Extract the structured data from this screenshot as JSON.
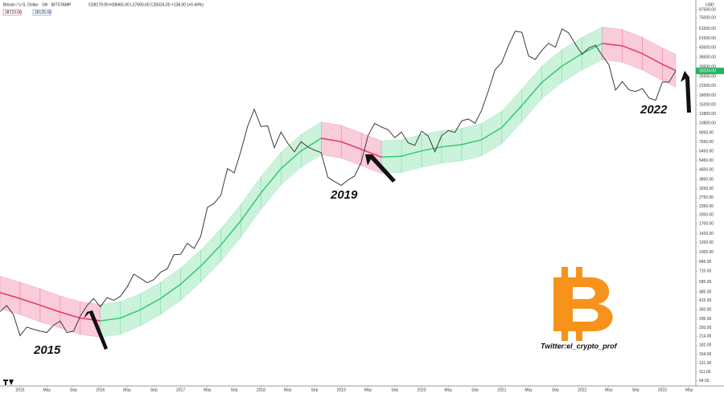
{
  "chart_data": {
    "type": "line",
    "title": "Bitcoin / U.S. Dollar · 1W · BITSTAMP",
    "ohlc_text": "O28179.00 H28465.00 L27600.00 C28324.00 +138.00 (+0.49%)",
    "indicator_labels": [
      "28723.00",
      "28125.00"
    ],
    "currency": "USD",
    "log_scale": true,
    "grid": false,
    "xlim": [
      "2014-10",
      "2023-06"
    ],
    "ylim": [
      86,
      104500
    ],
    "xticks": [
      {
        "value": "2015-01",
        "label": "2015"
      },
      {
        "value": "2015-05",
        "label": "May"
      },
      {
        "value": "2015-09",
        "label": "Sep"
      },
      {
        "value": "2016-01",
        "label": "2016"
      },
      {
        "value": "2016-05",
        "label": "May"
      },
      {
        "value": "2016-09",
        "label": "Sep"
      },
      {
        "value": "2017-01",
        "label": "2017"
      },
      {
        "value": "2017-05",
        "label": "May"
      },
      {
        "value": "2017-09",
        "label": "Sep"
      },
      {
        "value": "2018-01",
        "label": "2018"
      },
      {
        "value": "2018-05",
        "label": "May"
      },
      {
        "value": "2018-09",
        "label": "Sep"
      },
      {
        "value": "2019-01",
        "label": "2019"
      },
      {
        "value": "2019-05",
        "label": "May"
      },
      {
        "value": "2019-09",
        "label": "Sep"
      },
      {
        "value": "2020-01",
        "label": "2020"
      },
      {
        "value": "2020-05",
        "label": "May"
      },
      {
        "value": "2020-09",
        "label": "Sep"
      },
      {
        "value": "2021-01",
        "label": "2021"
      },
      {
        "value": "2021-05",
        "label": "May"
      },
      {
        "value": "2021-09",
        "label": "Sep"
      },
      {
        "value": "2022-01",
        "label": "2022"
      },
      {
        "value": "2022-05",
        "label": "May"
      },
      {
        "value": "2022-09",
        "label": "Sep"
      },
      {
        "value": "2023-01",
        "label": "2023"
      },
      {
        "value": "2023-05",
        "label": "May"
      }
    ],
    "yticks": [
      {
        "value": 87500,
        "label": "87500.00"
      },
      {
        "value": 75000,
        "label": "75000.00"
      },
      {
        "value": 61500,
        "label": "61500.00"
      },
      {
        "value": 51500,
        "label": "51500.00"
      },
      {
        "value": 43500,
        "label": "43500.00"
      },
      {
        "value": 36500,
        "label": "36500.00"
      },
      {
        "value": 30500,
        "label": "30500.00"
      },
      {
        "value": 25500,
        "label": "25500.00"
      },
      {
        "value": 21500,
        "label": "21500.00"
      },
      {
        "value": 18000,
        "label": "18000.00"
      },
      {
        "value": 15200,
        "label": "15200.00"
      },
      {
        "value": 12800,
        "label": "12800.00"
      },
      {
        "value": 10800,
        "label": "10800.00"
      },
      {
        "value": 9050,
        "label": "9050.00"
      },
      {
        "value": 7650,
        "label": "7650.00"
      },
      {
        "value": 6450,
        "label": "6450.00"
      },
      {
        "value": 5450,
        "label": "5450.00"
      },
      {
        "value": 4600,
        "label": "4600.00"
      },
      {
        "value": 3850,
        "label": "3850.00"
      },
      {
        "value": 3250,
        "label": "3250.00"
      },
      {
        "value": 2750,
        "label": "2750.00"
      },
      {
        "value": 2350,
        "label": "2350.00"
      },
      {
        "value": 2000,
        "label": "2000.00"
      },
      {
        "value": 1700,
        "label": "1700.00"
      },
      {
        "value": 1420,
        "label": "1420.00"
      },
      {
        "value": 1200,
        "label": "1200.00"
      },
      {
        "value": 1005,
        "label": "1005.00"
      },
      {
        "value": 845,
        "label": "845.00"
      },
      {
        "value": 710,
        "label": "710.00"
      },
      {
        "value": 585,
        "label": "585.00"
      },
      {
        "value": 485,
        "label": "485.00"
      },
      {
        "value": 415,
        "label": "415.00"
      },
      {
        "value": 350,
        "label": "350.00"
      },
      {
        "value": 295,
        "label": "295.00"
      },
      {
        "value": 250,
        "label": "250.00"
      },
      {
        "value": 214,
        "label": "214.00"
      },
      {
        "value": 182,
        "label": "182.00"
      },
      {
        "value": 154,
        "label": "154.00"
      },
      {
        "value": 131,
        "label": "131.00"
      },
      {
        "value": 111,
        "label": "111.00"
      },
      {
        "value": 94.5,
        "label": "94.50"
      }
    ],
    "last_price": {
      "value": 28324,
      "label": "28324.00"
    },
    "series": [
      {
        "name": "BTCUSD",
        "color": "#3a3a3a",
        "x": [
          "2014-10",
          "2014-11",
          "2014-12",
          "2015-01",
          "2015-02",
          "2015-03",
          "2015-04",
          "2015-05",
          "2015-06",
          "2015-07",
          "2015-08",
          "2015-09",
          "2015-10",
          "2015-11",
          "2015-12",
          "2016-01",
          "2016-02",
          "2016-03",
          "2016-04",
          "2016-05",
          "2016-06",
          "2016-07",
          "2016-08",
          "2016-09",
          "2016-10",
          "2016-11",
          "2016-12",
          "2017-01",
          "2017-02",
          "2017-03",
          "2017-04",
          "2017-05",
          "2017-06",
          "2017-07",
          "2017-08",
          "2017-09",
          "2017-10",
          "2017-11",
          "2017-12",
          "2018-01",
          "2018-02",
          "2018-03",
          "2018-04",
          "2018-05",
          "2018-06",
          "2018-07",
          "2018-08",
          "2018-09",
          "2018-10",
          "2018-11",
          "2018-12",
          "2019-01",
          "2019-02",
          "2019-03",
          "2019-04",
          "2019-05",
          "2019-06",
          "2019-07",
          "2019-08",
          "2019-09",
          "2019-10",
          "2019-11",
          "2019-12",
          "2020-01",
          "2020-02",
          "2020-03",
          "2020-04",
          "2020-05",
          "2020-06",
          "2020-07",
          "2020-08",
          "2020-09",
          "2020-10",
          "2020-11",
          "2020-12",
          "2021-01",
          "2021-02",
          "2021-03",
          "2021-04",
          "2021-05",
          "2021-06",
          "2021-07",
          "2021-08",
          "2021-09",
          "2021-10",
          "2021-11",
          "2021-12",
          "2022-01",
          "2022-02",
          "2022-03",
          "2022-04",
          "2022-05",
          "2022-06",
          "2022-07",
          "2022-08",
          "2022-09",
          "2022-10",
          "2022-11",
          "2022-12",
          "2023-01",
          "2023-02",
          "2023-03"
        ],
        "values": [
          338,
          378,
          320,
          217,
          254,
          244,
          236,
          230,
          263,
          284,
          230,
          236,
          311,
          377,
          430,
          369,
          437,
          416,
          448,
          531,
          673,
          624,
          575,
          609,
          698,
          742,
          963,
          970,
          1190,
          1080,
          1350,
          2300,
          2480,
          2870,
          4700,
          4340,
          6470,
          10200,
          14000,
          10200,
          10300,
          6900,
          9200,
          7500,
          6400,
          7700,
          7000,
          6600,
          6300,
          4000,
          3700,
          3450,
          3800,
          4100,
          5300,
          8600,
          10800,
          10100,
          9600,
          8300,
          9200,
          7550,
          7200,
          9350,
          8550,
          6400,
          8600,
          9450,
          9150,
          11300,
          11700,
          10800,
          13800,
          19700,
          29000,
          33100,
          45200,
          58800,
          57700,
          37300,
          35000,
          41500,
          47100,
          43800,
          61300,
          57000,
          46300,
          38500,
          43200,
          45500,
          37700,
          31800,
          19900,
          23300,
          20000,
          19400,
          20500,
          17200,
          16500,
          23100,
          23100,
          28300
        ]
      }
    ],
    "band": {
      "rising_color": "#2ecc71",
      "falling_color": "#e8336b",
      "x": [
        "2014-10",
        "2015-01",
        "2015-04",
        "2015-07",
        "2015-10",
        "2016-01",
        "2016-04",
        "2016-07",
        "2016-10",
        "2017-01",
        "2017-04",
        "2017-07",
        "2017-10",
        "2018-01",
        "2018-04",
        "2018-07",
        "2018-10",
        "2019-01",
        "2019-04",
        "2019-07",
        "2019-10",
        "2020-01",
        "2020-04",
        "2020-07",
        "2020-10",
        "2021-01",
        "2021-04",
        "2021-07",
        "2021-10",
        "2022-01",
        "2022-04",
        "2022-07",
        "2022-10",
        "2023-01",
        "2023-03"
      ],
      "center": [
        480,
        430,
        380,
        335,
        300,
        285,
        300,
        350,
        430,
        560,
        780,
        1150,
        1800,
        3000,
        4700,
        6500,
        8200,
        7700,
        6700,
        5800,
        5900,
        6500,
        7000,
        7300,
        8000,
        10000,
        15000,
        23000,
        31000,
        39000,
        47000,
        45000,
        39000,
        32000,
        28500
      ],
      "upper": [
        650,
        580,
        515,
        450,
        405,
        385,
        405,
        470,
        580,
        755,
        1050,
        1550,
        2430,
        4050,
        6350,
        8780,
        11070,
        10400,
        9050,
        7830,
        7970,
        8780,
        9450,
        9860,
        10800,
        13500,
        20250,
        31050,
        41850,
        52650,
        63450,
        60750,
        52650,
        43200,
        38480
      ],
      "lower": [
        355,
        320,
        280,
        250,
        222,
        211,
        222,
        260,
        320,
        415,
        580,
        850,
        1330,
        2220,
        3480,
        4810,
        6070,
        5700,
        4960,
        4300,
        4370,
        4810,
        5190,
        5410,
        5930,
        7410,
        11110,
        17040,
        22960,
        28890,
        34810,
        33330,
        28890,
        23700,
        21110
      ]
    },
    "annotations": [
      "2015",
      "2019",
      "2022",
      "Twitter:el_crypto_prof"
    ]
  }
}
